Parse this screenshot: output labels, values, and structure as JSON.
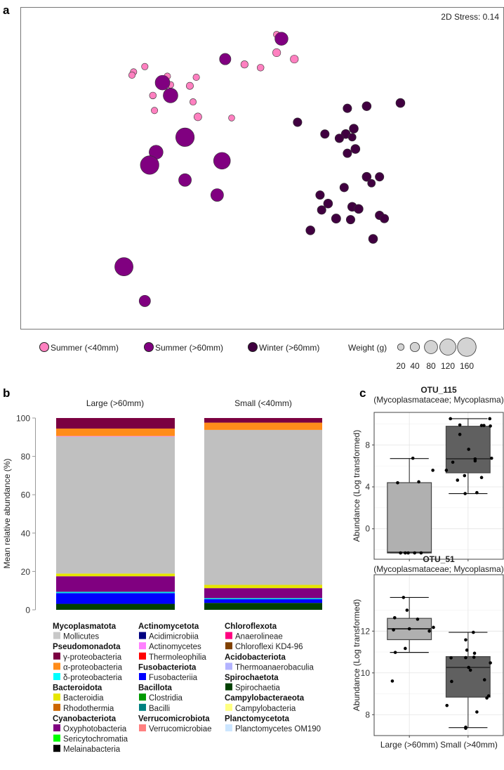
{
  "panels": {
    "a": "a",
    "b": "b",
    "c": "c"
  },
  "chart_data": [
    {
      "type": "scatter",
      "panel": "a",
      "title": "",
      "stress_label": "2D Stress: 0.14",
      "xlabel": "",
      "ylabel": "",
      "xlim": [
        -1.5,
        1.5
      ],
      "ylim": [
        -1.5,
        1.5
      ],
      "grid": false,
      "legend_placement": "bottom",
      "groups": [
        {
          "name": "Summer (<40mm)",
          "color": "#ff80c0",
          "points": [
            [
              0.09,
              1.25,
              20
            ],
            [
              0.09,
              1.08,
              30
            ],
            [
              0.2,
              1.02,
              30
            ],
            [
              -0.11,
              0.97,
              25
            ],
            [
              -0.01,
              0.94,
              22
            ],
            [
              -0.73,
              0.95,
              20
            ],
            [
              -0.8,
              0.9,
              20
            ],
            [
              -0.81,
              0.87,
              20
            ],
            [
              -0.59,
              0.86,
              20
            ],
            [
              -0.57,
              0.78,
              20
            ],
            [
              -0.41,
              0.85,
              20
            ],
            [
              -0.45,
              0.77,
              24
            ],
            [
              -0.68,
              0.68,
              22
            ],
            [
              -0.43,
              0.62,
              20
            ],
            [
              -0.67,
              0.54,
              20
            ],
            [
              -0.4,
              0.48,
              28
            ],
            [
              -0.19,
              0.47,
              18
            ]
          ]
        },
        {
          "name": "Summer (>60mm)",
          "color": "#800080",
          "points": [
            [
              0.12,
              1.21,
              80
            ],
            [
              -0.23,
              1.02,
              60
            ],
            [
              -0.62,
              0.8,
              100
            ],
            [
              -0.57,
              0.68,
              100
            ],
            [
              -0.48,
              0.29,
              160
            ],
            [
              -0.66,
              0.15,
              90
            ],
            [
              -0.7,
              0.03,
              160
            ],
            [
              -0.25,
              0.07,
              130
            ],
            [
              -0.48,
              -0.11,
              75
            ],
            [
              -0.28,
              -0.25,
              75
            ],
            [
              -0.86,
              -0.92,
              155
            ],
            [
              -0.73,
              -1.24,
              60
            ]
          ]
        },
        {
          "name": "Winter (>60mm)",
          "color": "#400040",
          "points": [
            [
              0.86,
              0.61,
              38
            ],
            [
              0.65,
              0.58,
              38
            ],
            [
              0.53,
              0.56,
              35
            ],
            [
              0.22,
              0.43,
              35
            ],
            [
              0.39,
              0.32,
              35
            ],
            [
              0.57,
              0.37,
              38
            ],
            [
              0.52,
              0.32,
              38
            ],
            [
              0.56,
              0.29,
              28
            ],
            [
              0.48,
              0.28,
              35
            ],
            [
              0.58,
              0.18,
              38
            ],
            [
              0.53,
              0.14,
              35
            ],
            [
              0.65,
              -0.08,
              38
            ],
            [
              0.73,
              -0.08,
              35
            ],
            [
              0.68,
              -0.14,
              28
            ],
            [
              0.51,
              -0.18,
              35
            ],
            [
              0.36,
              -0.25,
              35
            ],
            [
              0.41,
              -0.33,
              38
            ],
            [
              0.37,
              -0.39,
              35
            ],
            [
              0.56,
              -0.36,
              38
            ],
            [
              0.6,
              -0.38,
              38
            ],
            [
              0.73,
              -0.44,
              35
            ],
            [
              0.76,
              -0.47,
              35
            ],
            [
              0.46,
              -0.47,
              40
            ],
            [
              0.55,
              -0.48,
              35
            ],
            [
              0.3,
              -0.58,
              38
            ],
            [
              0.69,
              -0.66,
              38
            ]
          ]
        }
      ],
      "weight_legend": {
        "title": "Weight (g)",
        "values": [
          20,
          40,
          80,
          120,
          160
        ],
        "labels": [
          "20",
          "40",
          "80",
          "120",
          "160"
        ],
        "fill": "#d3d3d3"
      }
    },
    {
      "type": "bar",
      "panel": "b",
      "stacked": true,
      "title": "",
      "categories": [
        "Large (>60mm)",
        "Small (<40mm)"
      ],
      "ylabel": "Mean relative abundance (%)",
      "xlabel": "",
      "ylim": [
        0,
        100
      ],
      "yticks": [
        0,
        20,
        40,
        60,
        80,
        100
      ],
      "ytick_labels": [
        "0",
        "20",
        "40",
        "60",
        "80",
        "100"
      ],
      "legend_placement": "bottom",
      "series": [
        {
          "name": "Spirochaetia",
          "color": "#004000",
          "values": [
            3.1,
            3.6
          ]
        },
        {
          "name": "Fusobacteriia",
          "color": "#0000ff",
          "values": [
            5.6,
            1.9
          ]
        },
        {
          "name": "δ-proteobacteria",
          "color": "#00e0e0",
          "values": [
            0.7,
            0.6
          ]
        },
        {
          "name": "Oxyphotobacteria",
          "color": "#800080",
          "values": [
            8.1,
            5.2
          ]
        },
        {
          "name": "Bacteroidia",
          "color": "#e6e600",
          "values": [
            1.4,
            1.7
          ]
        },
        {
          "name": "Mollicutes",
          "color": "#c0c0c0",
          "values": [
            71.4,
            80.8
          ]
        },
        {
          "name": "Actinomycetes",
          "color": "#ff80ff",
          "values": [
            0.3,
            0.0
          ]
        },
        {
          "name": "α-proteobacteria",
          "color": "#ff8c1a",
          "values": [
            3.9,
            3.8
          ]
        },
        {
          "name": "γ-proteobacteria",
          "color": "#7b0041",
          "values": [
            5.5,
            2.4
          ]
        }
      ],
      "legend": [
        [
          {
            "phylum": "Mycoplasmatota",
            "classes": [
              {
                "name": "Mollicutes",
                "color": "#c8c8c8"
              }
            ]
          },
          {
            "phylum": "Pseudomonadota",
            "classes": [
              {
                "name": "γ-proteobacteria",
                "color": "#7b0041"
              },
              {
                "name": "α-proteobacteria",
                "color": "#ff8c1a"
              },
              {
                "name": "δ-proteobacteria",
                "color": "#00ffff"
              }
            ]
          },
          {
            "phylum": "Bacteroidota",
            "classes": [
              {
                "name": "Bacteroidia",
                "color": "#e6e600"
              },
              {
                "name": "Rhodothermia",
                "color": "#cc6600"
              }
            ]
          },
          {
            "phylum": "Cyanobacteriota",
            "classes": [
              {
                "name": "Oxyphotobacteria",
                "color": "#800080"
              },
              {
                "name": "Sericytochromatia",
                "color": "#00ff00"
              },
              {
                "name": "Melainabacteria",
                "color": "#000000"
              }
            ]
          }
        ],
        [
          {
            "phylum": "Actinomycetota",
            "classes": [
              {
                "name": "Acidimicrobiia",
                "color": "#000080"
              },
              {
                "name": "Actinomycetes",
                "color": "#ff80ff"
              },
              {
                "name": "Thermoleophilia",
                "color": "#ff0000"
              }
            ]
          },
          {
            "phylum": "Fusobacteriota",
            "classes": [
              {
                "name": "Fusobacteriia",
                "color": "#0000ff"
              }
            ]
          },
          {
            "phylum": "Bacillota",
            "classes": [
              {
                "name": "Clostridia",
                "color": "#009900"
              },
              {
                "name": "Bacilli",
                "color": "#008080"
              }
            ]
          },
          {
            "phylum": "Verrucomicrobiota",
            "classes": [
              {
                "name": "Verrucomicrobiae",
                "color": "#ff8080"
              }
            ]
          }
        ],
        [
          {
            "phylum": "Chloroflexota",
            "classes": [
              {
                "name": "Anaerolineae",
                "color": "#ff0080"
              },
              {
                "name": "Chloroflexi KD4-96",
                "color": "#804000"
              }
            ]
          },
          {
            "phylum": "Acidobacteriota",
            "classes": [
              {
                "name": "Thermoanaerobaculia",
                "color": "#b3b3ff"
              }
            ]
          },
          {
            "phylum": "Spirochaetota",
            "classes": [
              {
                "name": "Spirochaetia",
                "color": "#004000"
              }
            ]
          },
          {
            "phylum": "Campylobacteraeota",
            "classes": [
              {
                "name": "Campylobacteria",
                "color": "#ffff80"
              }
            ]
          },
          {
            "phylum": "Planctomycetota",
            "classes": [
              {
                "name": "Planctomycetes OM190",
                "color": "#cce6ff"
              }
            ]
          }
        ]
      ]
    },
    {
      "type": "box",
      "panel": "c",
      "categories": [
        "Large (>60mm)",
        "Small (>40mm)"
      ],
      "plots": [
        {
          "title": "OTU_115",
          "subtitle": "(Mycoplasmataceae; Mycoplasma)",
          "ylabel": "Abundance (Log transformed)",
          "ylim": [
            -2.9,
            11.1
          ],
          "yticks": [
            0,
            4,
            8
          ],
          "ytick_labels": [
            "0",
            "4",
            "8"
          ],
          "boxes": [
            {
              "category": "Large (>60mm)",
              "fill": "#b0b0b0",
              "lower_whisker": -2.3,
              "q1": -2.3,
              "median": -2.25,
              "q3": 4.4,
              "upper_whisker": 6.7,
              "points": [
                [
                  -0.15,
                  -2.3
                ],
                [
                  -0.07,
                  -2.3
                ],
                [
                  -0.02,
                  -2.3
                ],
                [
                  0.09,
                  -2.3
                ],
                [
                  0.2,
                  -2.3
                ],
                [
                  -0.2,
                  4.39
                ],
                [
                  0.16,
                  4.48
                ],
                [
                  0.06,
                  6.73
                ],
                [
                  0.4,
                  5.58
                ]
              ]
            },
            {
              "category": "Small (>40mm)",
              "fill": "#606060",
              "lower_whisker": 3.36,
              "q1": 5.34,
              "median": 6.68,
              "q3": 9.78,
              "upper_whisker": 10.5,
              "points": [
                [
                  -0.3,
                  10.5
                ],
                [
                  0.37,
                  10.5
                ],
                [
                  -0.14,
                  9.9
                ],
                [
                  0.23,
                  9.85
                ],
                [
                  0.38,
                  9.8
                ],
                [
                  0.27,
                  9.85
                ],
                [
                  -0.14,
                  9.0
                ],
                [
                  0.01,
                  7.58
                ],
                [
                  0.4,
                  6.73
                ],
                [
                  0.12,
                  6.66
                ],
                [
                  0.12,
                  6.48
                ],
                [
                  -0.26,
                  6.35
                ],
                [
                  -0.37,
                  5.58
                ],
                [
                  -0.06,
                  5.07
                ],
                [
                  0.23,
                  4.89
                ],
                [
                  -0.18,
                  4.64
                ],
                [
                  -0.05,
                  3.36
                ],
                [
                  0.15,
                  3.45
                ]
              ]
            }
          ]
        },
        {
          "title": "OTU_51",
          "subtitle": "(Mycoplasmataceae; Mycoplasma)",
          "ylabel": "Abundance (Log transformed)",
          "ylim": [
            7.0,
            14.7
          ],
          "yticks": [
            8,
            10,
            12
          ],
          "ytick_labels": [
            "8",
            "10",
            "12"
          ],
          "boxes": [
            {
              "category": "Large (>60mm)",
              "fill": "#b0b0b0",
              "lower_whisker": 10.98,
              "q1": 11.59,
              "median": 12.11,
              "q3": 12.61,
              "upper_whisker": 13.61,
              "points": [
                [
                  -0.1,
                  13.61
                ],
                [
                  -0.04,
                  13.0
                ],
                [
                  -0.25,
                  12.64
                ],
                [
                  0.14,
                  12.57
                ],
                [
                  -0.27,
                  12.06
                ],
                [
                  0,
                  12.11
                ],
                [
                  0.41,
                  12.18
                ],
                [
                  0.34,
                  12.0
                ],
                [
                  -0.07,
                  11.17
                ],
                [
                  -0.24,
                  10.98
                ],
                [
                  -0.29,
                  9.61
                ]
              ]
            },
            {
              "category": "Small (>40mm)",
              "fill": "#606060",
              "lower_whisker": 7.38,
              "q1": 8.84,
              "median": 10.26,
              "q3": 10.78,
              "upper_whisker": 11.94,
              "points": [
                [
                  0.09,
                  11.94
                ],
                [
                  -0.04,
                  11.58
                ],
                [
                  -0.02,
                  11.09
                ],
                [
                  0.11,
                  10.94
                ],
                [
                  -0.29,
                  10.72
                ],
                [
                  -0.04,
                  10.73
                ],
                [
                  0.1,
                  10.75
                ],
                [
                  0.38,
                  10.48
                ],
                [
                  0.01,
                  10.26
                ],
                [
                  0.04,
                  10.13
                ],
                [
                  -0.28,
                  9.59
                ],
                [
                  0.28,
                  9.67
                ],
                [
                  0.35,
                  8.9
                ],
                [
                  0.32,
                  8.8
                ],
                [
                  -0.36,
                  8.44
                ],
                [
                  0.15,
                  8.13
                ],
                [
                  -0.04,
                  7.4
                ],
                [
                  -0.04,
                  7.35
                ]
              ]
            }
          ]
        }
      ]
    }
  ]
}
